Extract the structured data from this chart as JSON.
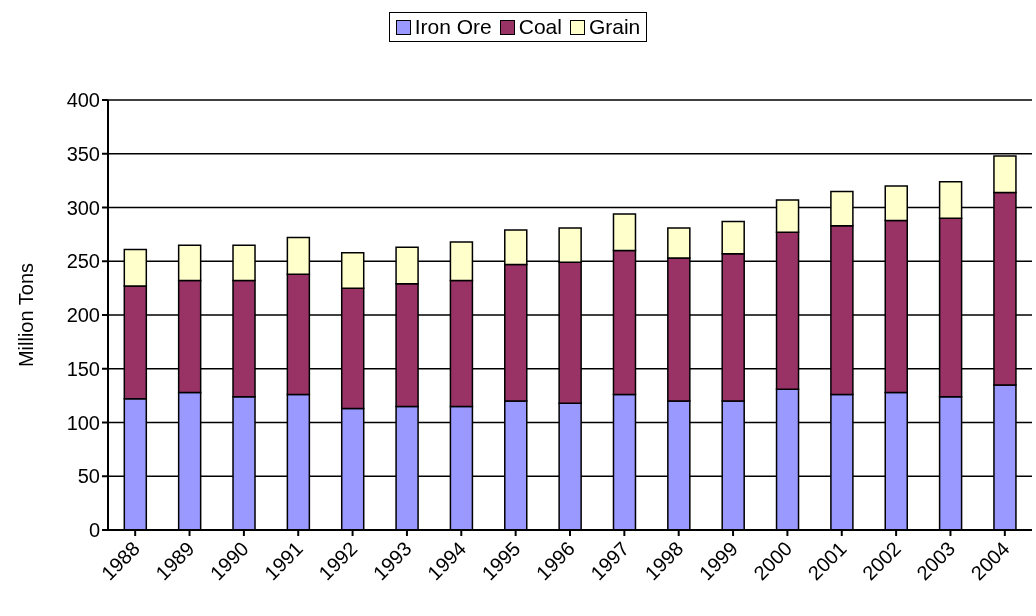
{
  "chart_data": {
    "type": "bar",
    "stacked": true,
    "ylabel": "Million Tons",
    "categories": [
      "1988",
      "1989",
      "1990",
      "1991",
      "1992",
      "1993",
      "1994",
      "1995",
      "1996",
      "1997",
      "1998",
      "1999",
      "2000",
      "2001",
      "2002",
      "2003",
      "2004"
    ],
    "series": [
      {
        "name": "Iron Ore",
        "color": "#9999ff",
        "values": [
          122,
          128,
          124,
          126,
          113,
          115,
          115,
          120,
          118,
          126,
          120,
          120,
          131,
          126,
          128,
          124,
          135
        ]
      },
      {
        "name": "Coal",
        "color": "#993366",
        "values": [
          105,
          104,
          108,
          112,
          112,
          114,
          117,
          127,
          131,
          134,
          133,
          137,
          146,
          157,
          160,
          166,
          179
        ]
      },
      {
        "name": "Grain",
        "color": "#ffffcc",
        "values": [
          34,
          33,
          33,
          34,
          33,
          34,
          36,
          32,
          32,
          34,
          28,
          30,
          30,
          32,
          32,
          34,
          34
        ]
      }
    ],
    "ylim": [
      0,
      400
    ],
    "yticks": [
      0,
      50,
      100,
      150,
      200,
      250,
      300,
      350,
      400
    ],
    "grid": "y",
    "legend": "top"
  }
}
